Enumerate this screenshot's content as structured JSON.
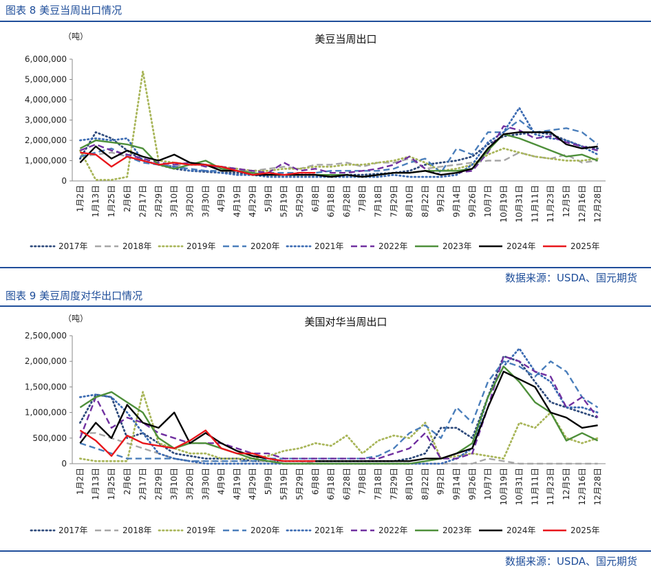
{
  "captions": [
    "图表 8  美豆当周出口情况",
    "图表 9  美豆周度对华出口情况"
  ],
  "sources": [
    "数据来源：USDA、国元期货",
    "数据来源：USDA、国元期货"
  ],
  "chart_data": [
    {
      "type": "line",
      "title": "美豆当周出口",
      "y_unit": "（吨）",
      "categories": [
        "1月2日",
        "1月13日",
        "1月25日",
        "2月6日",
        "2月17日",
        "2月29日",
        "3月10日",
        "3月20日",
        "3月30日",
        "4月9日",
        "4月19日",
        "4月29日",
        "5月9日",
        "5月19日",
        "5月29日",
        "6月8日",
        "6月18日",
        "6月28日",
        "7月8日",
        "7月18日",
        "7月29日",
        "8月10日",
        "8月22日",
        "9月2日",
        "9月14日",
        "9月26日",
        "10月7日",
        "10月19日",
        "10月31日",
        "11月11日",
        "11月23日",
        "12月5日",
        "12月16日",
        "12月28日"
      ],
      "ylim": [
        0,
        6000000
      ],
      "yticks": [
        0,
        {
          "value": 1000000,
          "label": "1,000,000"
        },
        {
          "value": 2000000,
          "label": "2,000,000"
        },
        {
          "value": 3000000,
          "label": "3,000,000"
        },
        {
          "value": 4000000,
          "label": "4,000,000"
        },
        {
          "value": 5000000,
          "label": "5,000,000"
        },
        {
          "value": 6000000,
          "label": "6,000,000"
        }
      ],
      "legend": "bottom",
      "series": [
        {
          "name": "2017年",
          "color": "#2f4b7c",
          "style": "dotted",
          "values": [
            1100000.0,
            2400000.0,
            2100000.0,
            1500000.0,
            1000000.0,
            800000.0,
            600000.0,
            500000.0,
            450000.0,
            400000.0,
            400000.0,
            300000.0,
            300000.0,
            300000.0,
            300000.0,
            300000.0,
            250000.0,
            300000.0,
            300000.0,
            350000.0,
            400000.0,
            500000.0,
            800000.0,
            900000.0,
            1000000.0,
            1200000.0,
            1800000.0,
            2200000.0,
            2300000.0,
            2400000.0,
            2300000.0,
            2000000.0,
            1700000.0,
            1600000.0
          ]
        },
        {
          "name": "2018年",
          "color": "#a6a6a6",
          "style": "dashed",
          "values": [
            1200000.0,
            1300000.0,
            1400000.0,
            1200000.0,
            1000000.0,
            800000.0,
            700000.0,
            900000.0,
            800000.0,
            600000.0,
            500000.0,
            500000.0,
            600000.0,
            700000.0,
            600000.0,
            800000.0,
            800000.0,
            900000.0,
            700000.0,
            900000.0,
            900000.0,
            1100000.0,
            600000.0,
            700000.0,
            800000.0,
            900000.0,
            1000000.0,
            1000000.0,
            1400000.0,
            1200000.0,
            1100000.0,
            1300000.0,
            900000.0,
            1000000.0
          ]
        },
        {
          "name": "2019年",
          "color": "#a9b65a",
          "style": "dotted",
          "values": [
            1500000.0,
            50000.0,
            50000.0,
            200000.0,
            5400000.0,
            1000000.0,
            900000.0,
            800000.0,
            800000.0,
            700000.0,
            600000.0,
            500000.0,
            500000.0,
            600000.0,
            600000.0,
            700000.0,
            700000.0,
            800000.0,
            800000.0,
            900000.0,
            1000000.0,
            1200000.0,
            900000.0,
            500000.0,
            600000.0,
            800000.0,
            1300000.0,
            1600000.0,
            1400000.0,
            1200000.0,
            1100000.0,
            1000000.0,
            1000000.0,
            1100000.0
          ]
        },
        {
          "name": "2020年",
          "color": "#4a7ebb",
          "style": "dashed",
          "values": [
            1200000.0,
            1400000.0,
            1600000.0,
            1200000.0,
            900000.0,
            800000.0,
            700000.0,
            600000.0,
            500000.0,
            500000.0,
            500000.0,
            400000.0,
            400000.0,
            400000.0,
            400000.0,
            400000.0,
            500000.0,
            500000.0,
            500000.0,
            500000.0,
            600000.0,
            900000.0,
            1100000.0,
            400000.0,
            1600000.0,
            1300000.0,
            2400000.0,
            2400000.0,
            3000000.0,
            2400000.0,
            2500000.0,
            2600000.0,
            2400000.0,
            1800000.0
          ]
        },
        {
          "name": "2021年",
          "color": "#3d6cb3",
          "style": "dotted",
          "values": [
            2000000.0,
            2100000.0,
            2000000.0,
            2100000.0,
            1000000.0,
            800000.0,
            700000.0,
            500000.0,
            500000.0,
            400000.0,
            300000.0,
            300000.0,
            200000.0,
            200000.0,
            200000.0,
            200000.0,
            200000.0,
            200000.0,
            200000.0,
            200000.0,
            300000.0,
            200000.0,
            200000.0,
            200000.0,
            300000.0,
            800000.0,
            1900000.0,
            2400000.0,
            3600000.0,
            2300000.0,
            2100000.0,
            2000000.0,
            1700000.0,
            1300000.0
          ]
        },
        {
          "name": "2022年",
          "color": "#7030a0",
          "style": "dashed",
          "values": [
            1500000.0,
            1800000.0,
            1500000.0,
            1300000.0,
            1100000.0,
            900000.0,
            800000.0,
            900000.0,
            700000.0,
            700000.0,
            600000.0,
            500000.0,
            400000.0,
            900000.0,
            500000.0,
            600000.0,
            400000.0,
            400000.0,
            500000.0,
            600000.0,
            800000.0,
            1200000.0,
            600000.0,
            300000.0,
            400000.0,
            500000.0,
            1400000.0,
            2700000.0,
            2500000.0,
            2100000.0,
            2200000.0,
            1900000.0,
            1700000.0,
            1500000.0
          ]
        },
        {
          "name": "2023年",
          "color": "#4e8f3a",
          "style": "solid",
          "values": [
            1600000.0,
            2000000.0,
            1900000.0,
            1800000.0,
            1600000.0,
            800000.0,
            600000.0,
            800000.0,
            1000000.0,
            600000.0,
            500000.0,
            400000.0,
            300000.0,
            300000.0,
            300000.0,
            300000.0,
            300000.0,
            300000.0,
            200000.0,
            300000.0,
            400000.0,
            400000.0,
            500000.0,
            500000.0,
            500000.0,
            600000.0,
            1500000.0,
            2300000.0,
            2100000.0,
            1800000.0,
            1500000.0,
            1200000.0,
            1300000.0,
            1000000.0
          ]
        },
        {
          "name": "2024年",
          "color": "#000000",
          "style": "solid",
          "values": [
            900000.0,
            1700000.0,
            1100000.0,
            1500000.0,
            1200000.0,
            1000000.0,
            1300000.0,
            900000.0,
            800000.0,
            500000.0,
            500000.0,
            300000.0,
            300000.0,
            300000.0,
            300000.0,
            300000.0,
            200000.0,
            300000.0,
            200000.0,
            300000.0,
            400000.0,
            400000.0,
            500000.0,
            300000.0,
            400000.0,
            600000.0,
            1600000.0,
            2300000.0,
            2400000.0,
            2400000.0,
            2400000.0,
            1800000.0,
            1600000.0,
            1700000.0
          ]
        },
        {
          "name": "2025年",
          "color": "#e8161b",
          "style": "solid",
          "values": [
            1400000.0,
            1300000.0,
            700000.0,
            1200000.0,
            1000000.0,
            800000.0,
            900000.0,
            800000.0,
            800000.0,
            700000.0,
            500000.0,
            300000.0,
            400000.0,
            300000.0,
            400000.0,
            400000.0,
            null,
            null,
            null,
            null,
            null,
            null,
            null,
            null,
            null,
            null,
            null,
            null,
            null,
            null,
            null,
            null,
            null,
            null
          ]
        }
      ]
    },
    {
      "type": "line",
      "title": "美国对华当周出口",
      "y_unit": "（吨）",
      "categories": [
        "1月2日",
        "1月13日",
        "1月25日",
        "2月6日",
        "2月17日",
        "2月29日",
        "3月10日",
        "3月20日",
        "3月30日",
        "4月9日",
        "4月19日",
        "4月29日",
        "5月9日",
        "5月19日",
        "5月29日",
        "6月8日",
        "6月18日",
        "6月28日",
        "7月8日",
        "7月18日",
        "7月29日",
        "8月10日",
        "8月22日",
        "9月2日",
        "9月14日",
        "9月26日",
        "10月7日",
        "10月19日",
        "10月31日",
        "11月11日",
        "11月23日",
        "12月5日",
        "12月16日",
        "12月28日"
      ],
      "ylim": [
        0,
        2500000
      ],
      "yticks": [
        0,
        {
          "value": 500000,
          "label": "500,000"
        },
        {
          "value": 1000000,
          "label": "1,000,000"
        },
        {
          "value": 1500000,
          "label": "1,500,000"
        },
        {
          "value": 2000000,
          "label": "2,000,000"
        },
        {
          "value": 2500000,
          "label": "2,500,000"
        }
      ],
      "legend": "bottom",
      "series": [
        {
          "name": "2017年",
          "color": "#2f4b7c",
          "style": "dotted",
          "values": [
            800000.0,
            1350000.0,
            1300000.0,
            500000.0,
            600000.0,
            400000.0,
            200000.0,
            150000.0,
            100000.0,
            100000.0,
            100000.0,
            50000.0,
            50000.0,
            50000.0,
            50000.0,
            50000.0,
            50000.0,
            50000.0,
            50000.0,
            50000.0,
            50000.0,
            100000.0,
            200000.0,
            700000.0,
            700000.0,
            500000.0,
            1300000.0,
            2100000.0,
            2000000.0,
            1600000.0,
            1200000.0,
            1100000.0,
            1000000.0,
            900000.0
          ]
        },
        {
          "name": "2018年",
          "color": "#a6a6a6",
          "style": "dashed",
          "values": [
            600000.0,
            600000.0,
            500000.0,
            400000.0,
            300000.0,
            200000.0,
            100000.0,
            50000.0,
            50000.0,
            50000.0,
            50000.0,
            50000.0,
            50000.0,
            50000.0,
            50000.0,
            0,
            0,
            0,
            0,
            0,
            0,
            0,
            0,
            0,
            0,
            0,
            100000.0,
            50000.0,
            0,
            0,
            0,
            0,
            0,
            0
          ]
        },
        {
          "name": "2019年",
          "color": "#a9b65a",
          "style": "dotted",
          "values": [
            100000.0,
            50000.0,
            50000.0,
            50000.0,
            1400000.0,
            400000.0,
            300000.0,
            200000.0,
            200000.0,
            100000.0,
            100000.0,
            100000.0,
            150000.0,
            250000.0,
            300000.0,
            400000.0,
            350000.0,
            550000.0,
            200000.0,
            450000.0,
            550000.0,
            500000.0,
            800000.0,
            100000.0,
            150000.0,
            200000.0,
            150000.0,
            100000.0,
            800000.0,
            700000.0,
            1000000.0,
            500000.0,
            400000.0,
            500000.0
          ]
        },
        {
          "name": "2020年",
          "color": "#4a7ebb",
          "style": "dashed",
          "values": [
            400000.0,
            300000.0,
            200000.0,
            100000.0,
            100000.0,
            100000.0,
            100000.0,
            50000.0,
            50000.0,
            50000.0,
            50000.0,
            50000.0,
            100000.0,
            100000.0,
            100000.0,
            100000.0,
            100000.0,
            100000.0,
            100000.0,
            150000.0,
            300000.0,
            600000.0,
            750000.0,
            500000.0,
            1100000.0,
            800000.0,
            1600000.0,
            2000000.0,
            1900000.0,
            1700000.0,
            2000000.0,
            1800000.0,
            1300000.0,
            1100000.0
          ]
        },
        {
          "name": "2021年",
          "color": "#3d6cb3",
          "style": "dotted",
          "values": [
            1300000.0,
            1350000.0,
            1300000.0,
            1000000.0,
            600000.0,
            200000.0,
            100000.0,
            50000.0,
            0,
            0,
            0,
            0,
            0,
            0,
            0,
            0,
            0,
            0,
            0,
            0,
            0,
            0,
            0,
            0,
            100000.0,
            300000.0,
            1300000.0,
            1900000.0,
            2250000.0,
            1800000.0,
            1600000.0,
            1100000.0,
            1100000.0,
            1000000.0
          ]
        },
        {
          "name": "2022年",
          "color": "#7030a0",
          "style": "dashed",
          "values": [
            500000.0,
            1300000.0,
            700000.0,
            900000.0,
            800000.0,
            600000.0,
            500000.0,
            400000.0,
            400000.0,
            400000.0,
            300000.0,
            200000.0,
            200000.0,
            100000.0,
            100000.0,
            100000.0,
            100000.0,
            100000.0,
            100000.0,
            100000.0,
            200000.0,
            300000.0,
            600000.0,
            100000.0,
            100000.0,
            200000.0,
            1100000.0,
            2100000.0,
            2000000.0,
            1800000.0,
            1700000.0,
            1100000.0,
            1300000.0,
            900000.0
          ]
        },
        {
          "name": "2023年",
          "color": "#4e8f3a",
          "style": "solid",
          "values": [
            1100000.0,
            1300000.0,
            1400000.0,
            1200000.0,
            1000000.0,
            500000.0,
            300000.0,
            400000.0,
            400000.0,
            300000.0,
            200000.0,
            100000.0,
            50000.0,
            0,
            0,
            0,
            0,
            0,
            0,
            0,
            0,
            0,
            50000.0,
            100000.0,
            200000.0,
            400000.0,
            1300000.0,
            1900000.0,
            1600000.0,
            1200000.0,
            1000000.0,
            450000.0,
            600000.0,
            450000.0
          ]
        },
        {
          "name": "2024年",
          "color": "#000000",
          "style": "solid",
          "values": [
            400000.0,
            800000.0,
            500000.0,
            1150000.0,
            800000.0,
            700000.0,
            1000000.0,
            400000.0,
            600000.0,
            400000.0,
            250000.0,
            150000.0,
            100000.0,
            50000.0,
            50000.0,
            50000.0,
            50000.0,
            50000.0,
            50000.0,
            50000.0,
            50000.0,
            50000.0,
            100000.0,
            100000.0,
            200000.0,
            300000.0,
            1100000.0,
            1800000.0,
            1650000.0,
            1500000.0,
            1000000.0,
            900000.0,
            700000.0,
            750000.0
          ]
        },
        {
          "name": "2025年",
          "color": "#e8161b",
          "style": "solid",
          "values": [
            650000.0,
            450000.0,
            150000.0,
            550000.0,
            400000.0,
            350000.0,
            300000.0,
            450000.0,
            650000.0,
            300000.0,
            200000.0,
            200000.0,
            100000.0,
            50000.0,
            50000.0,
            50000.0,
            null,
            null,
            null,
            null,
            null,
            null,
            null,
            null,
            null,
            null,
            null,
            null,
            null,
            null,
            null,
            null,
            null,
            null
          ]
        }
      ]
    }
  ]
}
